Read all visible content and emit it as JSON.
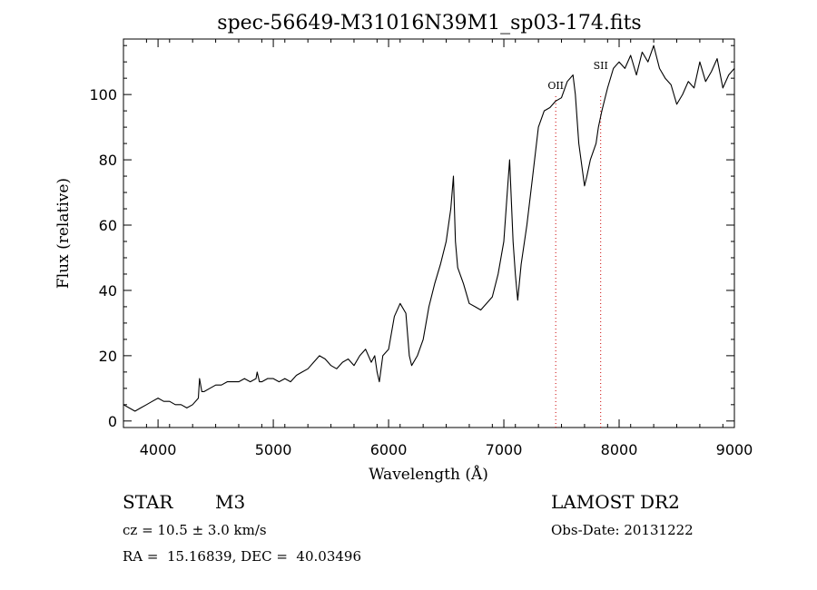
{
  "chart_data": {
    "type": "line",
    "title": "spec-56649-M31016N39M1_sp03-174.fits",
    "xlabel": "Wavelength (Å)",
    "ylabel": "Flux (relative)",
    "xlim": [
      3700,
      9000
    ],
    "ylim": [
      -2,
      117
    ],
    "xticks": [
      4000,
      5000,
      6000,
      7000,
      8000,
      9000
    ],
    "yticks": [
      0,
      20,
      40,
      60,
      80,
      100
    ],
    "grid": false,
    "line_color": "#000000",
    "marker_color": "#cc0000",
    "series": [
      {
        "x": [
          3700,
          3750,
          3800,
          3850,
          3900,
          3950,
          4000,
          4050,
          4100,
          4150,
          4200,
          4250,
          4300,
          4350,
          4360,
          4380,
          4400,
          4450,
          4500,
          4550,
          4600,
          4650,
          4700,
          4750,
          4800,
          4850,
          4860,
          4880,
          4900,
          4950,
          5000,
          5050,
          5100,
          5150,
          5200,
          5250,
          5300,
          5350,
          5400,
          5450,
          5500,
          5550,
          5600,
          5650,
          5700,
          5750,
          5800,
          5850,
          5880,
          5900,
          5920,
          5950,
          6000,
          6050,
          6100,
          6150,
          6180,
          6200,
          6250,
          6300,
          6350,
          6400,
          6450,
          6500,
          6540,
          6563,
          6580,
          6600,
          6650,
          6700,
          6750,
          6800,
          6850,
          6900,
          6950,
          7000,
          7030,
          7050,
          7080,
          7100,
          7120,
          7150,
          7200,
          7250,
          7300,
          7350,
          7400,
          7450,
          7500,
          7550,
          7600,
          7620,
          7650,
          7700,
          7720,
          7750,
          7800,
          7820,
          7850,
          7900,
          7950,
          8000,
          8050,
          8100,
          8150,
          8200,
          8250,
          8300,
          8350,
          8400,
          8450,
          8500,
          8550,
          8600,
          8650,
          8700,
          8750,
          8800,
          8850,
          8900,
          8950,
          9000
        ],
        "y": [
          5,
          4,
          3,
          4,
          5,
          6,
          7,
          6,
          6,
          5,
          5,
          4,
          5,
          7,
          13,
          9,
          9,
          10,
          11,
          11,
          12,
          12,
          12,
          13,
          12,
          13,
          15,
          12,
          12,
          13,
          13,
          12,
          13,
          12,
          14,
          15,
          16,
          18,
          20,
          19,
          17,
          16,
          18,
          19,
          17,
          20,
          22,
          18,
          20,
          15,
          12,
          20,
          22,
          32,
          36,
          33,
          20,
          17,
          20,
          25,
          35,
          42,
          48,
          55,
          65,
          75,
          55,
          47,
          42,
          36,
          35,
          34,
          36,
          38,
          45,
          55,
          70,
          80,
          55,
          45,
          37,
          48,
          60,
          75,
          90,
          95,
          96,
          98,
          99,
          104,
          106,
          100,
          85,
          72,
          75,
          80,
          85,
          90,
          95,
          102,
          108,
          110,
          108,
          112,
          106,
          113,
          110,
          115,
          108,
          105,
          103,
          97,
          100,
          104,
          102,
          110,
          104,
          107,
          111,
          102,
          106,
          108
        ]
      }
    ],
    "annotations": [
      {
        "label": "OII",
        "x": 7450
      },
      {
        "label": "SII",
        "x": 7840
      }
    ]
  },
  "info": {
    "class_label": "STAR",
    "subclass": "M3",
    "survey": "LAMOST DR2",
    "velocity": "cz = 10.5 ± 3.0 km/s",
    "obs_date": "Obs-Date: 20131222",
    "coords": "RA =  15.16839, DEC =  40.03496"
  }
}
